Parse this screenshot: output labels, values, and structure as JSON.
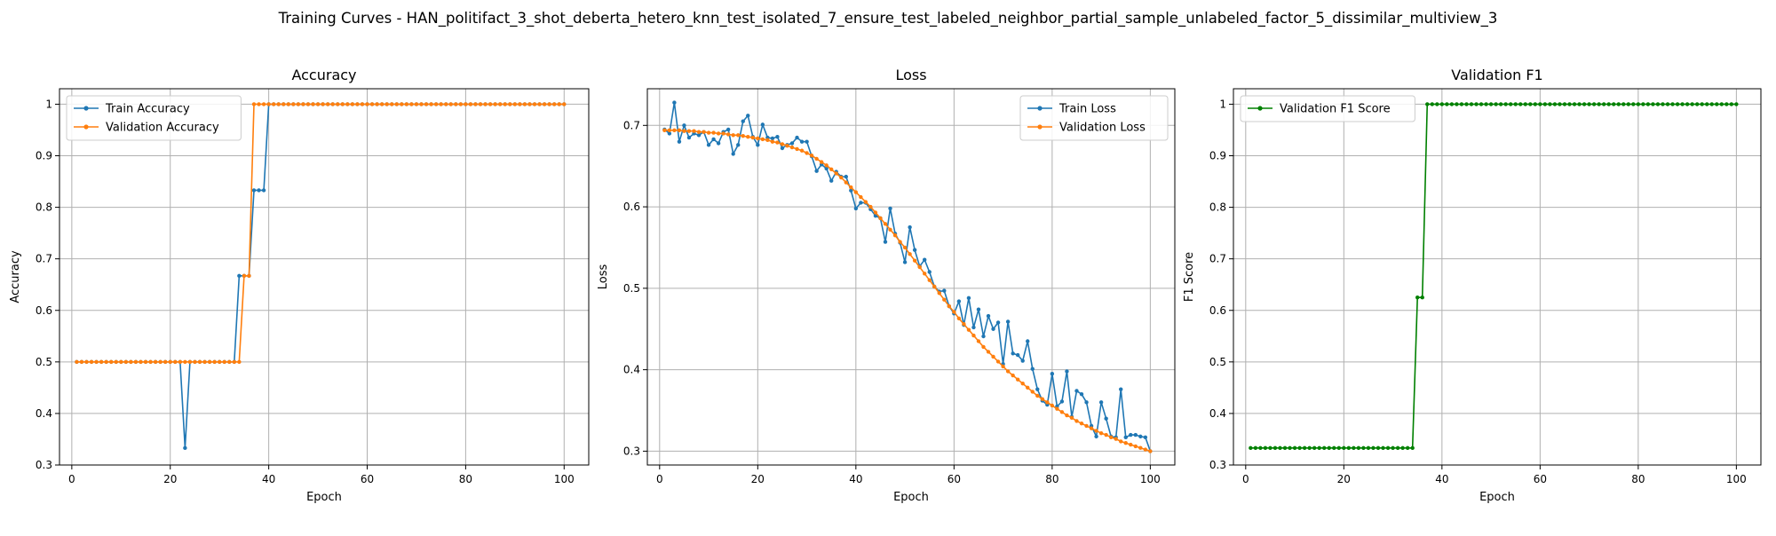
{
  "figure_title": "Training Curves - HAN_politifact_3_shot_deberta_hetero_knn_test_isolated_7_ensure_test_labeled_neighbor_partial_sample_unlabeled_factor_5_dissimilar_multiview_3",
  "colors": {
    "train": "#1f77b4",
    "validation": "#ff7f0e",
    "f1": "#008000"
  },
  "chart_data": [
    {
      "type": "line",
      "title": "Accuracy",
      "xlabel": "Epoch",
      "ylabel": "Accuracy",
      "xlim": [
        -2.5,
        105
      ],
      "ylim": [
        0.3,
        1.03
      ],
      "xticks": [
        0,
        20,
        40,
        60,
        80,
        100
      ],
      "yticks": [
        0.3,
        0.4,
        0.5,
        0.6,
        0.7,
        0.8,
        0.9,
        1.0
      ],
      "legend": "upper-left",
      "grid": true,
      "series": [
        {
          "name": "Train Accuracy",
          "color": "#1f77b4",
          "x_start": 1,
          "x_step": 1,
          "values": [
            0.5,
            0.5,
            0.5,
            0.5,
            0.5,
            0.5,
            0.5,
            0.5,
            0.5,
            0.5,
            0.5,
            0.5,
            0.5,
            0.5,
            0.5,
            0.5,
            0.5,
            0.5,
            0.5,
            0.5,
            0.5,
            0.5,
            0.333,
            0.5,
            0.5,
            0.5,
            0.5,
            0.5,
            0.5,
            0.5,
            0.5,
            0.5,
            0.5,
            0.667,
            0.667,
            0.667,
            0.833,
            0.833,
            0.833,
            1.0,
            1.0,
            1.0,
            1.0,
            1.0,
            1.0,
            1.0,
            1.0,
            1.0,
            1.0,
            1.0,
            1.0,
            1.0,
            1.0,
            1.0,
            1.0,
            1.0,
            1.0,
            1.0,
            1.0,
            1.0,
            1.0,
            1.0,
            1.0,
            1.0,
            1.0,
            1.0,
            1.0,
            1.0,
            1.0,
            1.0,
            1.0,
            1.0,
            1.0,
            1.0,
            1.0,
            1.0,
            1.0,
            1.0,
            1.0,
            1.0,
            1.0,
            1.0,
            1.0,
            1.0,
            1.0,
            1.0,
            1.0,
            1.0,
            1.0,
            1.0,
            1.0,
            1.0,
            1.0,
            1.0,
            1.0,
            1.0,
            1.0,
            1.0,
            1.0,
            1.0
          ]
        },
        {
          "name": "Validation Accuracy",
          "color": "#ff7f0e",
          "x_start": 1,
          "x_step": 1,
          "values": [
            0.5,
            0.5,
            0.5,
            0.5,
            0.5,
            0.5,
            0.5,
            0.5,
            0.5,
            0.5,
            0.5,
            0.5,
            0.5,
            0.5,
            0.5,
            0.5,
            0.5,
            0.5,
            0.5,
            0.5,
            0.5,
            0.5,
            0.5,
            0.5,
            0.5,
            0.5,
            0.5,
            0.5,
            0.5,
            0.5,
            0.5,
            0.5,
            0.5,
            0.5,
            0.667,
            0.667,
            1.0,
            1.0,
            1.0,
            1.0,
            1.0,
            1.0,
            1.0,
            1.0,
            1.0,
            1.0,
            1.0,
            1.0,
            1.0,
            1.0,
            1.0,
            1.0,
            1.0,
            1.0,
            1.0,
            1.0,
            1.0,
            1.0,
            1.0,
            1.0,
            1.0,
            1.0,
            1.0,
            1.0,
            1.0,
            1.0,
            1.0,
            1.0,
            1.0,
            1.0,
            1.0,
            1.0,
            1.0,
            1.0,
            1.0,
            1.0,
            1.0,
            1.0,
            1.0,
            1.0,
            1.0,
            1.0,
            1.0,
            1.0,
            1.0,
            1.0,
            1.0,
            1.0,
            1.0,
            1.0,
            1.0,
            1.0,
            1.0,
            1.0,
            1.0,
            1.0,
            1.0,
            1.0,
            1.0,
            1.0
          ]
        }
      ]
    },
    {
      "type": "line",
      "title": "Loss",
      "xlabel": "Epoch",
      "ylabel": "Loss",
      "xlim": [
        -2.5,
        105
      ],
      "ylim": [
        0.283,
        0.745
      ],
      "xticks": [
        0,
        20,
        40,
        60,
        80,
        100
      ],
      "yticks": [
        0.3,
        0.4,
        0.5,
        0.6,
        0.7
      ],
      "legend": "upper-right",
      "grid": true,
      "series": [
        {
          "name": "Train Loss",
          "color": "#1f77b4",
          "x_start": 1,
          "x_step": 1,
          "values": [
            0.695,
            0.69,
            0.728,
            0.68,
            0.7,
            0.685,
            0.69,
            0.688,
            0.692,
            0.676,
            0.683,
            0.678,
            0.692,
            0.695,
            0.665,
            0.676,
            0.705,
            0.712,
            0.686,
            0.676,
            0.701,
            0.685,
            0.684,
            0.686,
            0.672,
            0.676,
            0.678,
            0.685,
            0.68,
            0.68,
            0.662,
            0.644,
            0.652,
            0.647,
            0.632,
            0.643,
            0.637,
            0.637,
            0.62,
            0.598,
            0.605,
            0.605,
            0.597,
            0.589,
            0.586,
            0.557,
            0.598,
            0.567,
            0.556,
            0.532,
            0.575,
            0.547,
            0.527,
            0.535,
            0.52,
            0.502,
            0.496,
            0.497,
            0.478,
            0.469,
            0.484,
            0.455,
            0.488,
            0.452,
            0.474,
            0.441,
            0.466,
            0.45,
            0.458,
            0.407,
            0.459,
            0.42,
            0.418,
            0.411,
            0.435,
            0.401,
            0.376,
            0.362,
            0.357,
            0.395,
            0.355,
            0.361,
            0.398,
            0.342,
            0.374,
            0.37,
            0.36,
            0.331,
            0.318,
            0.36,
            0.34,
            0.318,
            0.317,
            0.376,
            0.317,
            0.32,
            0.32,
            0.318,
            0.317,
            0.3
          ]
        },
        {
          "name": "Validation Loss",
          "color": "#ff7f0e",
          "x_start": 1,
          "x_step": 1,
          "values": [
            0.694,
            0.694,
            0.694,
            0.694,
            0.693,
            0.693,
            0.693,
            0.692,
            0.692,
            0.691,
            0.691,
            0.69,
            0.69,
            0.689,
            0.688,
            0.688,
            0.687,
            0.686,
            0.685,
            0.684,
            0.683,
            0.682,
            0.68,
            0.679,
            0.677,
            0.675,
            0.673,
            0.671,
            0.669,
            0.666,
            0.663,
            0.659,
            0.655,
            0.651,
            0.646,
            0.641,
            0.636,
            0.63,
            0.624,
            0.618,
            0.612,
            0.606,
            0.6,
            0.593,
            0.586,
            0.579,
            0.572,
            0.565,
            0.557,
            0.55,
            0.542,
            0.534,
            0.526,
            0.518,
            0.51,
            0.502,
            0.494,
            0.486,
            0.478,
            0.471,
            0.463,
            0.456,
            0.449,
            0.442,
            0.435,
            0.428,
            0.422,
            0.416,
            0.41,
            0.404,
            0.398,
            0.393,
            0.388,
            0.383,
            0.378,
            0.373,
            0.368,
            0.364,
            0.36,
            0.356,
            0.352,
            0.348,
            0.344,
            0.341,
            0.337,
            0.334,
            0.331,
            0.328,
            0.325,
            0.322,
            0.32,
            0.317,
            0.315,
            0.312,
            0.31,
            0.308,
            0.306,
            0.304,
            0.302,
            0.3
          ]
        }
      ]
    },
    {
      "type": "line",
      "title": "Validation F1",
      "xlabel": "Epoch",
      "ylabel": "F1 Score",
      "xlim": [
        -2.5,
        105
      ],
      "ylim": [
        0.3,
        1.03
      ],
      "xticks": [
        0,
        20,
        40,
        60,
        80,
        100
      ],
      "yticks": [
        0.3,
        0.4,
        0.5,
        0.6,
        0.7,
        0.8,
        0.9,
        1.0
      ],
      "legend": "upper-left",
      "grid": true,
      "series": [
        {
          "name": "Validation F1 Score",
          "color": "#008000",
          "x_start": 1,
          "x_step": 1,
          "values": [
            0.333,
            0.333,
            0.333,
            0.333,
            0.333,
            0.333,
            0.333,
            0.333,
            0.333,
            0.333,
            0.333,
            0.333,
            0.333,
            0.333,
            0.333,
            0.333,
            0.333,
            0.333,
            0.333,
            0.333,
            0.333,
            0.333,
            0.333,
            0.333,
            0.333,
            0.333,
            0.333,
            0.333,
            0.333,
            0.333,
            0.333,
            0.333,
            0.333,
            0.333,
            0.625,
            0.625,
            1.0,
            1.0,
            1.0,
            1.0,
            1.0,
            1.0,
            1.0,
            1.0,
            1.0,
            1.0,
            1.0,
            1.0,
            1.0,
            1.0,
            1.0,
            1.0,
            1.0,
            1.0,
            1.0,
            1.0,
            1.0,
            1.0,
            1.0,
            1.0,
            1.0,
            1.0,
            1.0,
            1.0,
            1.0,
            1.0,
            1.0,
            1.0,
            1.0,
            1.0,
            1.0,
            1.0,
            1.0,
            1.0,
            1.0,
            1.0,
            1.0,
            1.0,
            1.0,
            1.0,
            1.0,
            1.0,
            1.0,
            1.0,
            1.0,
            1.0,
            1.0,
            1.0,
            1.0,
            1.0,
            1.0,
            1.0,
            1.0,
            1.0,
            1.0,
            1.0,
            1.0,
            1.0,
            1.0,
            1.0
          ]
        }
      ]
    }
  ]
}
